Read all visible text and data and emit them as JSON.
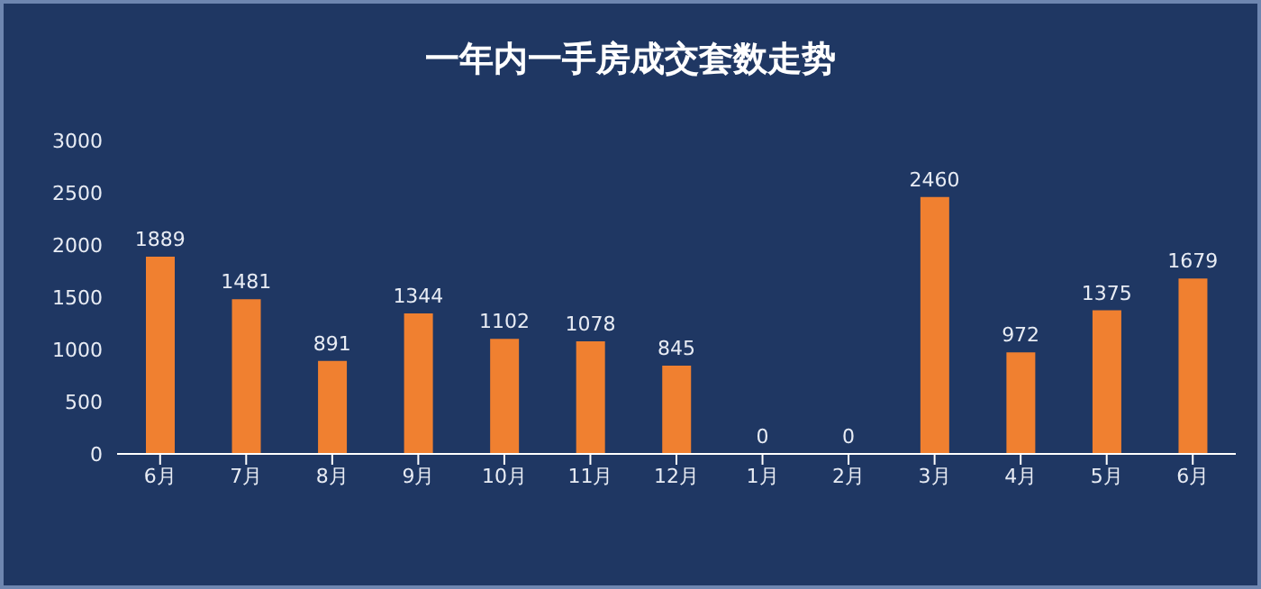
{
  "chart_data": {
    "type": "bar",
    "title": "一年内一手房成交套数走势",
    "categories": [
      "6月",
      "7月",
      "8月",
      "9月",
      "10月",
      "11月",
      "12月",
      "1月",
      "2月",
      "3月",
      "4月",
      "5月",
      "6月"
    ],
    "values": [
      1889,
      1481,
      891,
      1344,
      1102,
      1078,
      845,
      0,
      0,
      2460,
      972,
      1375,
      1679
    ],
    "color": "#f08030",
    "ylim": [
      0,
      3000
    ],
    "yticks": [
      0,
      500,
      1000,
      1500,
      2000,
      2500,
      3000
    ],
    "grid": false,
    "data_labels": true
  }
}
